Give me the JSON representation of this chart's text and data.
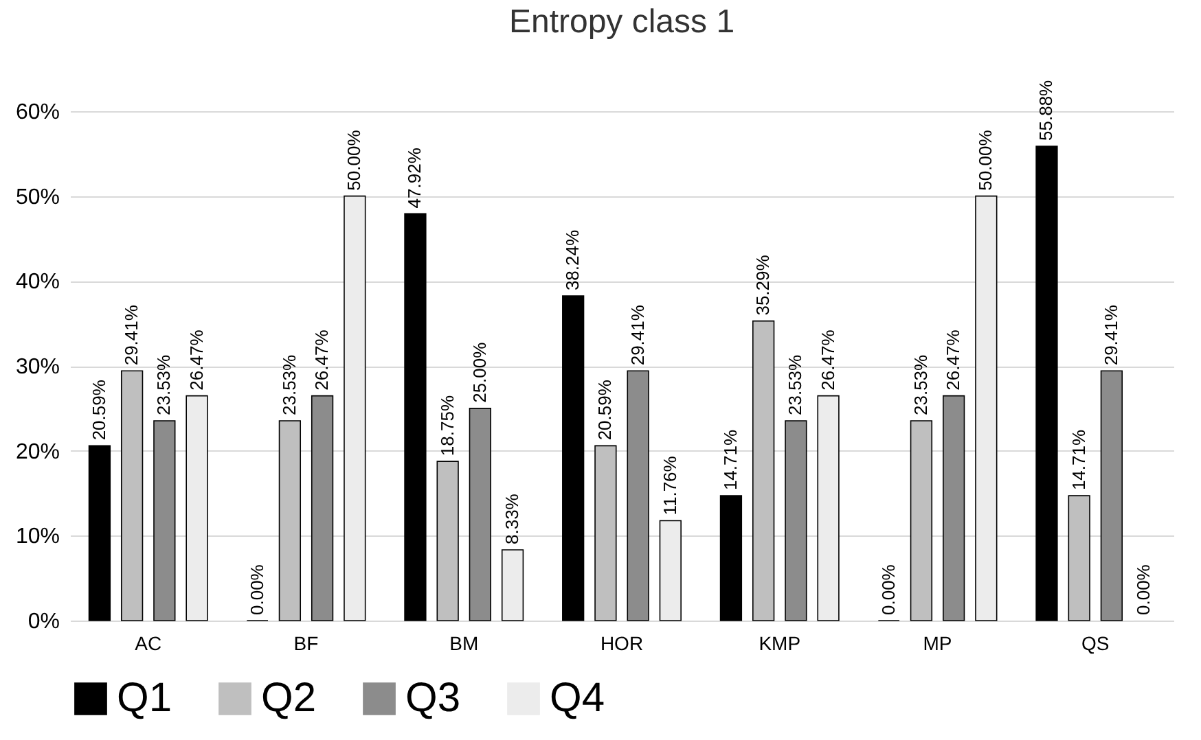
{
  "chart_data": {
    "type": "bar",
    "title": "Entropy class 1",
    "categories": [
      "AC",
      "BF",
      "BM",
      "HOR",
      "KMP",
      "MP",
      "QS"
    ],
    "series": [
      {
        "name": "Q1",
        "color": "#000000",
        "values": [
          20.59,
          0.0,
          47.92,
          38.24,
          14.71,
          0.0,
          55.88
        ],
        "value_labels": [
          "20.59%",
          "0.00%",
          "47.92%",
          "38.24%",
          "14.71%",
          "0.00%",
          "55.88%"
        ]
      },
      {
        "name": "Q2",
        "color": "#bfbfbf",
        "values": [
          29.41,
          23.53,
          18.75,
          20.59,
          35.29,
          23.53,
          14.71
        ],
        "value_labels": [
          "29.41%",
          "23.53%",
          "18.75%",
          "20.59%",
          "35.29%",
          "23.53%",
          "14.71%"
        ]
      },
      {
        "name": "Q3",
        "color": "#8c8c8c",
        "values": [
          23.53,
          26.47,
          25.0,
          29.41,
          23.53,
          26.47,
          29.41
        ],
        "value_labels": [
          "23.53%",
          "26.47%",
          "25.00%",
          "29.41%",
          "23.53%",
          "26.47%",
          "29.41%"
        ]
      },
      {
        "name": "Q4",
        "color": "#ececec",
        "values": [
          26.47,
          50.0,
          8.33,
          11.76,
          26.47,
          50.0,
          0.0
        ],
        "value_labels": [
          "26.47%",
          "50.00%",
          "8.33%",
          "11.76%",
          "26.47%",
          "50.00%",
          "0.00%"
        ]
      }
    ],
    "ylim": [
      0,
      60
    ],
    "yticks": [
      {
        "value": 0,
        "label": "0%"
      },
      {
        "value": 10,
        "label": "10%"
      },
      {
        "value": 20,
        "label": "20%"
      },
      {
        "value": 30,
        "label": "30%"
      },
      {
        "value": 40,
        "label": "40%"
      },
      {
        "value": 50,
        "label": "50%"
      },
      {
        "value": 60,
        "label": "60%"
      }
    ],
    "grid": "y",
    "legend": "bottom"
  }
}
